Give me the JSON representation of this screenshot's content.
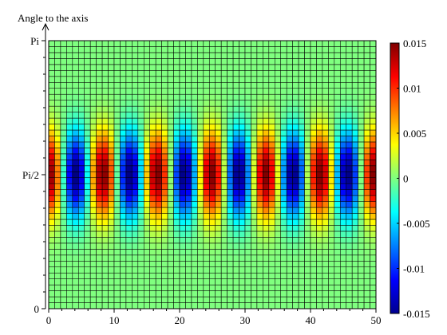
{
  "chart_data": {
    "type": "heatmap",
    "ylabel": "Angle to the axis",
    "xlabel": "",
    "xlim": [
      0,
      50
    ],
    "y_range": [
      0,
      3.14159
    ],
    "x_ticks": [
      0,
      10,
      20,
      30,
      40,
      50
    ],
    "x_tick_labels": [
      "0",
      "10",
      "20",
      "30",
      "40",
      "50"
    ],
    "y_ticks": [
      0,
      1.5708,
      3.14159
    ],
    "y_tick_labels": [
      "0",
      "Pi/2",
      "Pi"
    ],
    "grid": {
      "columns": 55,
      "rows": 45,
      "cell_edges": true
    },
    "value_model": {
      "description_of_pattern": "amplitude * sin(angle)^8 * cos(2*pi*x/period)",
      "amplitude": 0.015,
      "period": 8.3,
      "angle_exponent": 8
    },
    "colorbar": {
      "colormap": "jet",
      "min": -0.015,
      "max": 0.015,
      "ticks": [
        0.015,
        0.01,
        0.005,
        0,
        -0.005,
        -0.01,
        -0.015
      ],
      "tick_labels": [
        "0.015",
        "0.01",
        "0.005",
        "0",
        "-0.005",
        "-0.01",
        "-0.015"
      ]
    }
  }
}
